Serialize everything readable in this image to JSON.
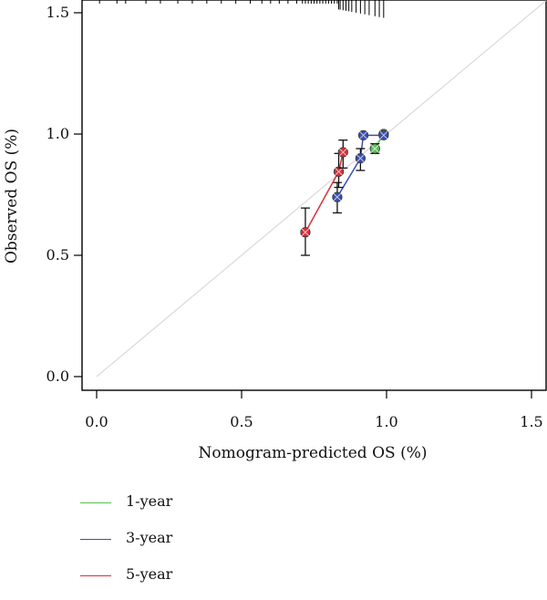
{
  "chart_data": {
    "type": "scatter",
    "title": "",
    "xlabel": "Nomogram-predicted OS (%)",
    "ylabel": "Observed OS (%)",
    "xlim": [
      -0.05,
      1.55
    ],
    "ylim": [
      -0.05,
      1.55
    ],
    "xticks": [
      0.0,
      0.5,
      1.0,
      1.5
    ],
    "xtick_labels": [
      "0.0",
      "0.5",
      "1.0",
      "1.5"
    ],
    "yticks": [
      0.0,
      0.5,
      1.0,
      1.5
    ],
    "ytick_labels": [
      "0.0",
      "0.5",
      "1.0",
      "1.5"
    ],
    "reference_line": {
      "from": [
        0,
        0
      ],
      "to": [
        1.55,
        1.55
      ],
      "color": "#d9d9d9"
    },
    "rug_x": [
      0.01,
      0.07,
      0.1,
      0.17,
      0.22,
      0.28,
      0.33,
      0.38,
      0.43,
      0.48,
      0.53,
      0.57,
      0.6,
      0.63,
      0.66,
      0.69,
      0.71,
      0.72,
      0.73,
      0.74,
      0.75,
      0.76,
      0.77,
      0.78,
      0.79,
      0.8,
      0.81,
      0.82,
      0.83,
      0.835,
      0.84,
      0.85,
      0.86,
      0.87,
      0.88,
      0.895,
      0.91,
      0.925,
      0.94,
      0.96,
      0.975,
      0.99
    ],
    "series": [
      {
        "name": "1-year",
        "color": "#55c255",
        "x": [
          0.96,
          0.99
        ],
        "y": [
          0.94,
          1.0
        ],
        "y_low": [
          0.92,
          1.0
        ],
        "y_high": [
          0.96,
          1.0
        ]
      },
      {
        "name": "3-year",
        "color": "#3a4fb0",
        "x": [
          0.83,
          0.91,
          0.92,
          0.99
        ],
        "y": [
          0.74,
          0.9,
          0.995,
          0.995
        ],
        "y_low": [
          0.675,
          0.85,
          0.995,
          0.995
        ],
        "y_high": [
          0.8,
          0.94,
          0.995,
          0.995
        ]
      },
      {
        "name": "5-year",
        "color": "#d6313c",
        "x": [
          0.72,
          0.835,
          0.85
        ],
        "y": [
          0.595,
          0.845,
          0.925
        ],
        "y_low": [
          0.5,
          0.78,
          0.86
        ],
        "y_high": [
          0.695,
          0.92,
          0.975
        ]
      }
    ],
    "legend": {
      "position": "bottom-left",
      "entries": [
        "1-year",
        "3-year",
        "5-year"
      ]
    }
  }
}
